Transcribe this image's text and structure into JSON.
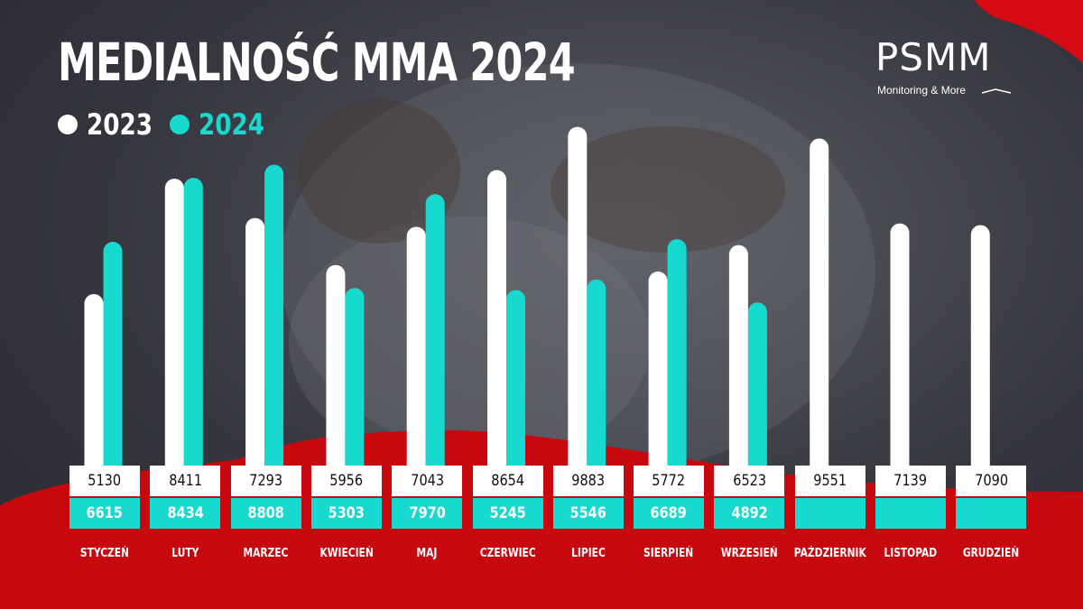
{
  "title": "MEDIALNOŚĆ MMA 2024",
  "legend": [
    {
      "label": "2023",
      "color": "#ffffff"
    },
    {
      "label": "2024",
      "color": "#17d9cf"
    }
  ],
  "logo": {
    "name": "PSMM",
    "tagline": "Monitoring & More"
  },
  "colors": {
    "accent_red": "#d40a14",
    "teal": "#17d9cf",
    "white": "#ffffff"
  },
  "chart_data": {
    "type": "bar",
    "categories": [
      "STYCZEŃ",
      "LUTY",
      "MARZEC",
      "KWIECIEŃ",
      "MAJ",
      "CZERWIEC",
      "LIPIEC",
      "SIERPIEŃ",
      "WRZESIEŃ",
      "PAŹDZIERNIK",
      "LISTOPAD",
      "GRUDZIEŃ"
    ],
    "series": [
      {
        "name": "2023",
        "values": [
          5130,
          8411,
          7293,
          5956,
          7043,
          8654,
          9883,
          5772,
          6523,
          9551,
          7139,
          7090
        ]
      },
      {
        "name": "2024",
        "values": [
          6615,
          8434,
          8808,
          5303,
          7970,
          5245,
          5546,
          6689,
          4892,
          null,
          null,
          null
        ]
      }
    ],
    "title": "MEDIALNOŚĆ MMA 2024",
    "xlabel": "",
    "ylabel": "",
    "grid": false,
    "legend_position": "top-left"
  }
}
